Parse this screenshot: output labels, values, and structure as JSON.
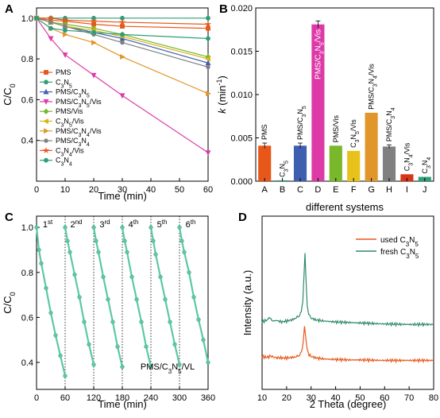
{
  "chart_data": [
    {
      "panel": "A",
      "type": "line",
      "xlabel": "Time (min)",
      "ylabel": "C/C0",
      "xlim": [
        0,
        60
      ],
      "ylim": [
        0.2,
        1.05
      ],
      "xticks": [
        "0",
        "10",
        "20",
        "30",
        "40",
        "50",
        "60"
      ],
      "yticks": [
        "0.4",
        "0.6",
        "0.8",
        "1.0"
      ],
      "x": [
        0,
        5,
        10,
        20,
        30,
        60
      ],
      "legend_position": "left",
      "series": [
        {
          "name": "PMS",
          "color": "#e8571a",
          "marker": "square",
          "values": [
            1.0,
            0.99,
            0.985,
            0.97,
            0.96,
            0.95
          ]
        },
        {
          "name": "C3N5",
          "color": "#2e9e78",
          "marker": "circle",
          "values": [
            1.0,
            1.0,
            1.0,
            1.0,
            1.0,
            1.0
          ]
        },
        {
          "name": "PMS/C3N5",
          "color": "#3e5fb0",
          "marker": "triangle-up",
          "values": [
            1.0,
            0.98,
            0.96,
            0.93,
            0.9,
            0.78
          ]
        },
        {
          "name": "PMS/C3N5/Vis",
          "color": "#dd3aa8",
          "marker": "triangle-down",
          "values": [
            1.0,
            0.9,
            0.82,
            0.72,
            0.62,
            0.34
          ]
        },
        {
          "name": "PMS/Vis",
          "color": "#78b82a",
          "marker": "diamond",
          "values": [
            1.0,
            0.98,
            0.97,
            0.95,
            0.92,
            0.81
          ]
        },
        {
          "name": "C3N5/Vis",
          "color": "#d9b21a",
          "marker": "triangle-left",
          "values": [
            1.0,
            0.98,
            0.96,
            0.94,
            0.91,
            0.8
          ]
        },
        {
          "name": "PMS/C3N4/Vis",
          "color": "#e0962a",
          "marker": "triangle-right",
          "values": [
            1.0,
            0.95,
            0.92,
            0.88,
            0.81,
            0.63
          ]
        },
        {
          "name": "PMS/C3N4",
          "color": "#808080",
          "marker": "hexagon",
          "values": [
            1.0,
            0.98,
            0.96,
            0.92,
            0.88,
            0.76
          ]
        },
        {
          "name": "C3N4/Vis",
          "color": "#e8571a",
          "marker": "star",
          "values": [
            1.0,
            1.0,
            0.99,
            0.985,
            0.98,
            0.97
          ]
        },
        {
          "name": "C3N4",
          "color": "#2e9e78",
          "marker": "circle",
          "values": [
            1.0,
            0.95,
            0.94,
            0.93,
            0.92,
            0.9
          ]
        }
      ]
    },
    {
      "panel": "B",
      "type": "bar",
      "xlabel": "different systems",
      "ylabel": "k (min-1)",
      "ylim": [
        0,
        0.02
      ],
      "yticks": [
        "0.000",
        "0.005",
        "0.010",
        "0.015",
        "0.020"
      ],
      "categories": [
        "A",
        "B",
        "C",
        "D",
        "E",
        "F",
        "G",
        "H",
        "I",
        "J"
      ],
      "values": [
        0.0041,
        0.0001,
        0.0041,
        0.0181,
        0.0041,
        0.0035,
        0.0079,
        0.004,
        0.0008,
        0.0005
      ],
      "errors": [
        0.0003,
        0.0,
        0.0003,
        0.0004,
        0.0,
        0.0,
        0.0,
        0.0002,
        0.0,
        0.0
      ],
      "bar_labels": [
        "PMS",
        "C3N5",
        "PMS/C3N5",
        "PMS/C3N5/Vis",
        "PMS/Vis",
        "C3N5/Vis",
        "PMS/C3N4/Vis",
        "PMS/C3N4",
        "C3N4/Vis",
        "C3N4"
      ],
      "colors": [
        "#e8571a",
        "#2e9e78",
        "#3e5fb0",
        "#dd3aa8",
        "#78b82a",
        "#e8c21a",
        "#e0962a",
        "#808080",
        "#d9341a",
        "#2e9e78"
      ]
    },
    {
      "panel": "C",
      "type": "line",
      "xlabel": "Time (min)",
      "ylabel": "C/C0",
      "xlim": [
        0,
        360
      ],
      "ylim": [
        0.28,
        1.05
      ],
      "xticks": [
        "0",
        "60",
        "120",
        "180",
        "240",
        "300",
        "360"
      ],
      "yticks": [
        "0.4",
        "0.6",
        "0.8",
        "1.0"
      ],
      "cycle_labels": [
        "1st",
        "2nd",
        "3rd",
        "4th",
        "5th",
        "6th"
      ],
      "cycle_boundaries": [
        60,
        120,
        180,
        240,
        300
      ],
      "annotation": "PMS/C3N5/VL",
      "series": [
        {
          "color": "#5cc9a0",
          "x": [
            0,
            5,
            10,
            20,
            30,
            40,
            50,
            60
          ],
          "values": [
            1.0,
            0.9,
            0.84,
            0.73,
            0.62,
            0.52,
            0.43,
            0.34
          ]
        },
        {
          "color": "#5cc9a0",
          "x": [
            60,
            65,
            70,
            80,
            90,
            100,
            110,
            120
          ],
          "values": [
            1.0,
            0.94,
            0.89,
            0.79,
            0.69,
            0.58,
            0.48,
            0.39
          ]
        },
        {
          "color": "#5cc9a0",
          "x": [
            120,
            125,
            130,
            140,
            150,
            160,
            170,
            180
          ],
          "values": [
            1.0,
            0.94,
            0.89,
            0.78,
            0.68,
            0.58,
            0.47,
            0.38
          ]
        },
        {
          "color": "#5cc9a0",
          "x": [
            180,
            185,
            190,
            200,
            210,
            220,
            230,
            240
          ],
          "values": [
            1.0,
            0.94,
            0.89,
            0.78,
            0.68,
            0.58,
            0.47,
            0.38
          ]
        },
        {
          "color": "#5cc9a0",
          "x": [
            240,
            245,
            250,
            260,
            270,
            280,
            290,
            300
          ],
          "values": [
            1.0,
            0.94,
            0.88,
            0.78,
            0.68,
            0.58,
            0.48,
            0.39
          ]
        },
        {
          "color": "#5cc9a0",
          "x": [
            300,
            305,
            310,
            320,
            330,
            340,
            350,
            360
          ],
          "values": [
            1.0,
            0.94,
            0.89,
            0.8,
            0.69,
            0.59,
            0.5,
            0.4
          ]
        }
      ]
    },
    {
      "panel": "D",
      "type": "line",
      "xlabel": "2 Theta (degree)",
      "ylabel": "Intensity (a.u.)",
      "xlim": [
        10,
        80
      ],
      "xticks": [
        "10",
        "20",
        "30",
        "40",
        "50",
        "60",
        "70",
        "80"
      ],
      "legend_position": "top-right",
      "series": [
        {
          "name": "used C3N5",
          "color": "#e8571a",
          "offset": 0.0,
          "x": [
            10,
            12,
            13.5,
            15,
            18,
            20,
            22,
            24,
            25,
            26,
            26.8,
            27.3,
            27.7,
            28.2,
            28.8,
            30,
            32,
            35,
            40,
            45,
            50,
            60,
            70,
            80
          ],
          "values": [
            0.12,
            0.1,
            0.13,
            0.1,
            0.09,
            0.09,
            0.1,
            0.11,
            0.14,
            0.2,
            0.4,
            0.75,
            0.55,
            0.3,
            0.18,
            0.12,
            0.09,
            0.07,
            0.06,
            0.05,
            0.05,
            0.04,
            0.04,
            0.04
          ]
        },
        {
          "name": "fresh C3N5",
          "color": "#2e8a6a",
          "offset": 0.72,
          "x": [
            10,
            12,
            13.3,
            14,
            16,
            18,
            20,
            22,
            24,
            25,
            26,
            26.6,
            27.1,
            27.5,
            27.9,
            28.4,
            29,
            30,
            32,
            35,
            40,
            45,
            50,
            60,
            70,
            80
          ],
          "values": [
            0.1,
            0.14,
            0.2,
            0.12,
            0.13,
            0.1,
            0.12,
            0.14,
            0.18,
            0.22,
            0.3,
            0.5,
            1.05,
            1.5,
            1.0,
            0.45,
            0.25,
            0.18,
            0.14,
            0.12,
            0.1,
            0.09,
            0.08,
            0.06,
            0.05,
            0.05
          ]
        }
      ]
    }
  ]
}
